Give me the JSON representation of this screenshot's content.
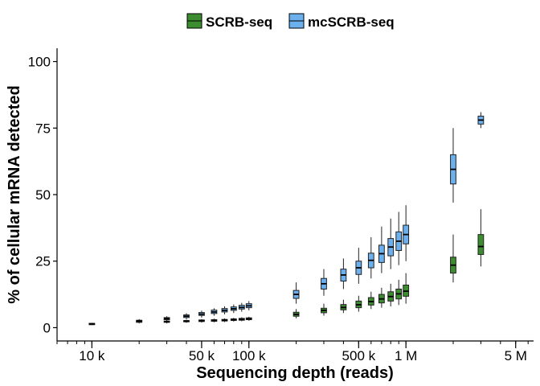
{
  "chart_data": {
    "type": "box",
    "xlabel": "Sequencing depth (reads)",
    "ylabel": "% of cellular mRNA detected",
    "x_scale": "log10",
    "xlim": [
      6000,
      6500000
    ],
    "ylim": [
      -5,
      105
    ],
    "x_ticks": [
      {
        "value": 10000,
        "label": "10 k"
      },
      {
        "value": 50000,
        "label": "50 k"
      },
      {
        "value": 100000,
        "label": "100 k"
      },
      {
        "value": 500000,
        "label": "500 k"
      },
      {
        "value": 1000000,
        "label": "1 M"
      },
      {
        "value": 5000000,
        "label": "5 M"
      }
    ],
    "y_ticks": [
      {
        "value": 0,
        "label": "0"
      },
      {
        "value": 25,
        "label": "25"
      },
      {
        "value": 50,
        "label": "50"
      },
      {
        "value": 75,
        "label": "75"
      },
      {
        "value": 100,
        "label": "100"
      }
    ],
    "legend": {
      "position": "top"
    },
    "grid": false,
    "series": [
      {
        "name": "SCRB-seq",
        "color": "#3C8D2F",
        "boxes": [
          {
            "x": 10000,
            "min": 1.0,
            "q1": 1.2,
            "median": 1.4,
            "q3": 1.6,
            "max": 1.8
          },
          {
            "x": 20000,
            "min": 1.6,
            "q1": 2.0,
            "median": 2.3,
            "q3": 2.6,
            "max": 3.0
          },
          {
            "x": 30000,
            "min": 1.6,
            "q1": 2.0,
            "median": 2.2,
            "q3": 2.5,
            "max": 2.8
          },
          {
            "x": 40000,
            "min": 1.8,
            "q1": 2.2,
            "median": 2.4,
            "q3": 2.7,
            "max": 3.0
          },
          {
            "x": 50000,
            "min": 1.9,
            "q1": 2.3,
            "median": 2.6,
            "q3": 2.9,
            "max": 3.2
          },
          {
            "x": 60000,
            "min": 2.0,
            "q1": 2.4,
            "median": 2.7,
            "q3": 3.0,
            "max": 3.4
          },
          {
            "x": 70000,
            "min": 2.1,
            "q1": 2.5,
            "median": 2.8,
            "q3": 3.1,
            "max": 3.5
          },
          {
            "x": 80000,
            "min": 2.3,
            "q1": 2.7,
            "median": 3.0,
            "q3": 3.3,
            "max": 3.7
          },
          {
            "x": 90000,
            "min": 2.4,
            "q1": 2.8,
            "median": 3.1,
            "q3": 3.5,
            "max": 3.9
          },
          {
            "x": 100000,
            "min": 2.6,
            "q1": 3.0,
            "median": 3.3,
            "q3": 3.7,
            "max": 4.1
          },
          {
            "x": 200000,
            "min": 3.5,
            "q1": 4.3,
            "median": 5.0,
            "q3": 5.8,
            "max": 7.0
          },
          {
            "x": 300000,
            "min": 4.5,
            "q1": 5.6,
            "median": 6.5,
            "q3": 7.3,
            "max": 9.0
          },
          {
            "x": 400000,
            "min": 5.5,
            "q1": 6.7,
            "median": 7.6,
            "q3": 8.7,
            "max": 10.5
          },
          {
            "x": 500000,
            "min": 6.0,
            "q1": 7.5,
            "median": 8.6,
            "q3": 10.0,
            "max": 12.0
          },
          {
            "x": 600000,
            "min": 7.0,
            "q1": 8.5,
            "median": 9.8,
            "q3": 11.3,
            "max": 13.5
          },
          {
            "x": 700000,
            "min": 7.5,
            "q1": 9.3,
            "median": 10.8,
            "q3": 12.5,
            "max": 15.0
          },
          {
            "x": 800000,
            "min": 8.0,
            "q1": 10.0,
            "median": 11.7,
            "q3": 13.5,
            "max": 16.5
          },
          {
            "x": 900000,
            "min": 8.5,
            "q1": 10.8,
            "median": 12.7,
            "q3": 14.5,
            "max": 18.0
          },
          {
            "x": 1000000,
            "min": 9.0,
            "q1": 11.8,
            "median": 13.7,
            "q3": 16.0,
            "max": 20.5
          },
          {
            "x": 2000000,
            "min": 17.0,
            "q1": 20.5,
            "median": 23.5,
            "q3": 26.5,
            "max": 35.0
          },
          {
            "x": 3000000,
            "min": 23.0,
            "q1": 27.5,
            "median": 30.5,
            "q3": 35.0,
            "max": 44.5
          }
        ]
      },
      {
        "name": "mcSCRB-seq",
        "color": "#6CB0EE",
        "boxes": [
          {
            "x": 10000,
            "min": 1.0,
            "q1": 1.2,
            "median": 1.4,
            "q3": 1.6,
            "max": 1.8
          },
          {
            "x": 20000,
            "min": 1.8,
            "q1": 2.2,
            "median": 2.5,
            "q3": 2.8,
            "max": 3.2
          },
          {
            "x": 30000,
            "min": 2.5,
            "q1": 3.0,
            "median": 3.4,
            "q3": 3.8,
            "max": 4.3
          },
          {
            "x": 40000,
            "min": 3.2,
            "q1": 3.8,
            "median": 4.3,
            "q3": 4.8,
            "max": 5.4
          },
          {
            "x": 50000,
            "min": 3.8,
            "q1": 4.6,
            "median": 5.1,
            "q3": 5.7,
            "max": 6.4
          },
          {
            "x": 60000,
            "min": 4.5,
            "q1": 5.3,
            "median": 5.9,
            "q3": 6.6,
            "max": 7.3
          },
          {
            "x": 70000,
            "min": 5.0,
            "q1": 5.9,
            "median": 6.5,
            "q3": 7.2,
            "max": 8.0
          },
          {
            "x": 80000,
            "min": 5.5,
            "q1": 6.5,
            "median": 7.1,
            "q3": 7.8,
            "max": 8.7
          },
          {
            "x": 90000,
            "min": 6.0,
            "q1": 7.0,
            "median": 7.6,
            "q3": 8.4,
            "max": 9.3
          },
          {
            "x": 100000,
            "min": 6.5,
            "q1": 7.5,
            "median": 8.2,
            "q3": 9.0,
            "max": 10.0
          },
          {
            "x": 200000,
            "min": 9.0,
            "q1": 11.0,
            "median": 12.5,
            "q3": 14.0,
            "max": 17.0
          },
          {
            "x": 300000,
            "min": 12.0,
            "q1": 14.5,
            "median": 16.5,
            "q3": 18.5,
            "max": 22.0
          },
          {
            "x": 400000,
            "min": 14.5,
            "q1": 17.5,
            "median": 19.8,
            "q3": 22.0,
            "max": 26.0
          },
          {
            "x": 500000,
            "min": 16.5,
            "q1": 20.0,
            "median": 22.5,
            "q3": 25.0,
            "max": 30.0
          },
          {
            "x": 600000,
            "min": 18.5,
            "q1": 22.5,
            "median": 25.3,
            "q3": 28.0,
            "max": 34.0
          },
          {
            "x": 700000,
            "min": 20.5,
            "q1": 24.5,
            "median": 27.8,
            "q3": 31.0,
            "max": 38.0
          },
          {
            "x": 800000,
            "min": 22.0,
            "q1": 27.0,
            "median": 30.3,
            "q3": 33.5,
            "max": 41.0
          },
          {
            "x": 900000,
            "min": 23.5,
            "q1": 29.0,
            "median": 32.5,
            "q3": 36.0,
            "max": 43.5
          },
          {
            "x": 1000000,
            "min": 25.0,
            "q1": 31.5,
            "median": 35.0,
            "q3": 38.5,
            "max": 46.0
          },
          {
            "x": 2000000,
            "min": 47.0,
            "q1": 54.0,
            "median": 59.5,
            "q3": 65.0,
            "max": 75.0
          },
          {
            "x": 3000000,
            "min": 75.0,
            "q1": 76.5,
            "median": 78.0,
            "q3": 79.5,
            "max": 81.0
          }
        ]
      }
    ]
  }
}
